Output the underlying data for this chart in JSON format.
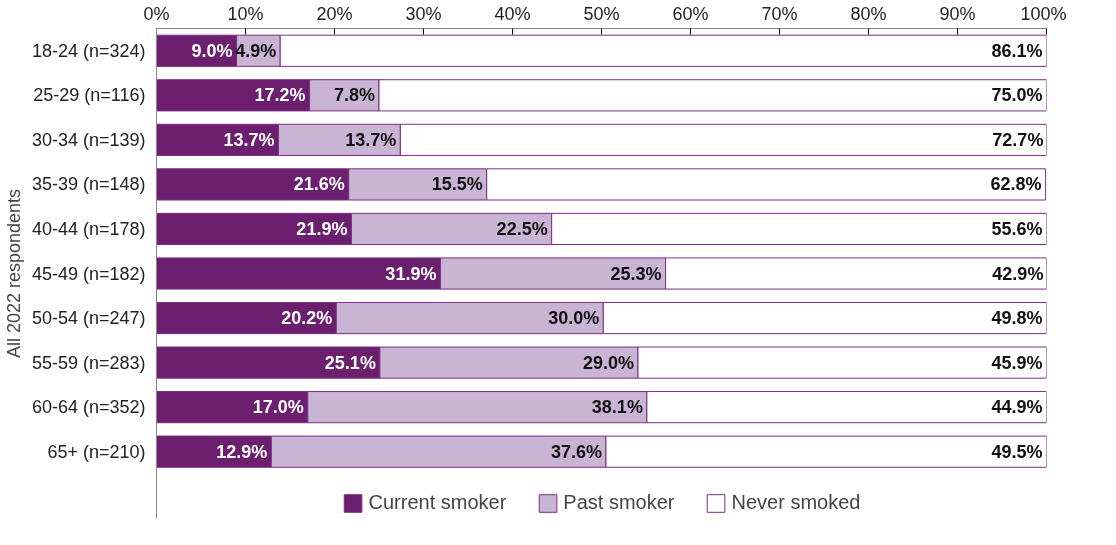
{
  "chart_data": {
    "type": "bar",
    "orientation": "horizontal",
    "stacked": true,
    "ylabel": "All 2022 respondents",
    "categories": [
      "18-24 (n=324)",
      "25-29 (n=116)",
      "30-34 (n=139)",
      "35-39 (n=148)",
      "40-44 (n=178)",
      "45-49 (n=182)",
      "50-54 (n=247)",
      "55-59 (n=283)",
      "60-64 (n=352)",
      "65+ (n=210)"
    ],
    "series": [
      {
        "name": "Current smoker",
        "color": "#6b1f6e",
        "values": [
          9.0,
          17.2,
          13.7,
          21.6,
          21.9,
          31.9,
          20.2,
          25.1,
          17.0,
          12.9
        ],
        "value_labels": [
          "9.0%",
          "17.2%",
          "13.7%",
          "21.6%",
          "21.9%",
          "31.9%",
          "20.2%",
          "25.1%",
          "17.0%",
          "12.9%"
        ]
      },
      {
        "name": "Past smoker",
        "color": "#c9b4d4",
        "values": [
          4.9,
          7.8,
          13.7,
          15.5,
          22.5,
          25.3,
          30.0,
          29.0,
          38.1,
          37.6
        ],
        "value_labels": [
          "4.9%",
          "7.8%",
          "13.7%",
          "15.5%",
          "22.5%",
          "25.3%",
          "30.0%",
          "29.0%",
          "38.1%",
          "37.6%"
        ]
      },
      {
        "name": "Never smoked",
        "color": "#ffffff",
        "values": [
          86.1,
          75.0,
          72.7,
          62.8,
          55.6,
          42.9,
          49.8,
          45.9,
          44.9,
          49.5
        ],
        "value_labels": [
          "86.1%",
          "75.0%",
          "72.7%",
          "62.8%",
          "55.6%",
          "42.9%",
          "49.8%",
          "45.9%",
          "44.9%",
          "49.5%"
        ]
      }
    ],
    "xlim": [
      0,
      100
    ],
    "xticks": [
      {
        "value": 0,
        "label": "0%"
      },
      {
        "value": 10,
        "label": "10%"
      },
      {
        "value": 20,
        "label": "20%"
      },
      {
        "value": 30,
        "label": "30%"
      },
      {
        "value": 40,
        "label": "40%"
      },
      {
        "value": 50,
        "label": "50%"
      },
      {
        "value": 60,
        "label": "60%"
      },
      {
        "value": 70,
        "label": "70%"
      },
      {
        "value": 80,
        "label": "80%"
      },
      {
        "value": 90,
        "label": "90%"
      },
      {
        "value": 100,
        "label": "100%"
      }
    ],
    "legend": "bottom"
  }
}
